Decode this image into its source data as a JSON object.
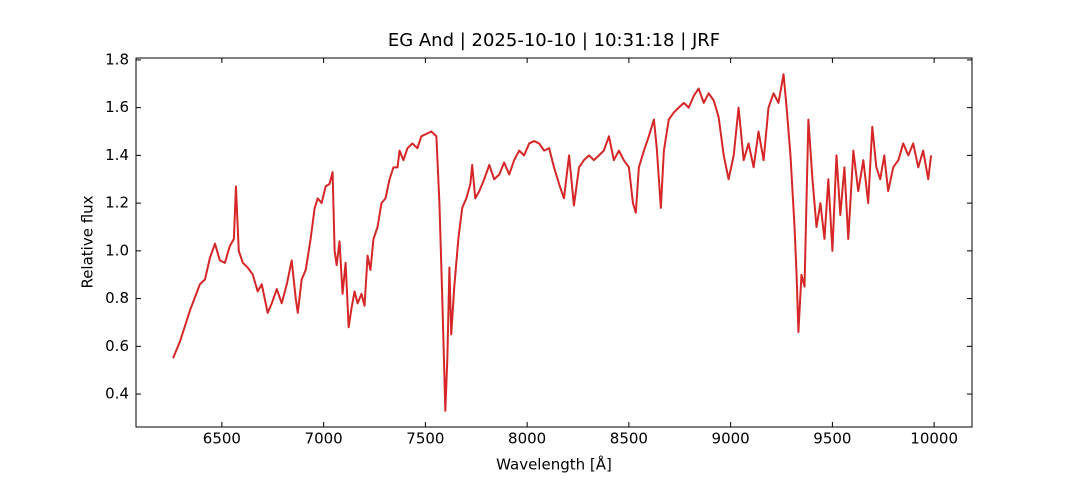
{
  "chart_data": {
    "type": "line",
    "title": "EG And | 2025-10-10 | 10:31:18 | JRF",
    "x_label": "Wavelength [Å]",
    "y_label": "Relative flux",
    "color": "#d62728",
    "x": [
      6260,
      6294,
      6343,
      6392,
      6417,
      6441,
      6466,
      6490,
      6515,
      6539,
      6559,
      6569,
      6583,
      6603,
      6627,
      6652,
      6676,
      6696,
      6725,
      6745,
      6770,
      6794,
      6819,
      6843,
      6863,
      6873,
      6892,
      6912,
      6936,
      6956,
      6971,
      6990,
      7010,
      7029,
      7044,
      7054,
      7064,
      7078,
      7093,
      7108,
      7123,
      7137,
      7152,
      7167,
      7186,
      7201,
      7216,
      7230,
      7245,
      7265,
      7284,
      7304,
      7324,
      7343,
      7363,
      7373,
      7392,
      7412,
      7436,
      7461,
      7480,
      7505,
      7529,
      7554,
      7569,
      7583,
      7598,
      7608,
      7618,
      7627,
      7642,
      7662,
      7681,
      7701,
      7721,
      7730,
      7745,
      7765,
      7789,
      7814,
      7838,
      7863,
      7887,
      7912,
      7936,
      7961,
      7985,
      8010,
      8034,
      8059,
      8083,
      8108,
      8132,
      8157,
      8181,
      8206,
      8230,
      8255,
      8279,
      8304,
      8328,
      8353,
      8377,
      8402,
      8426,
      8451,
      8475,
      8500,
      8520,
      8534,
      8549,
      8574,
      8598,
      8623,
      8637,
      8657,
      8672,
      8696,
      8721,
      8745,
      8770,
      8794,
      8819,
      8843,
      8868,
      8892,
      8917,
      8941,
      8966,
      8990,
      9015,
      9039,
      9064,
      9088,
      9113,
      9137,
      9162,
      9186,
      9211,
      9235,
      9260,
      9275,
      9294,
      9314,
      9324,
      9333,
      9348,
      9363,
      9382,
      9402,
      9422,
      9441,
      9461,
      9480,
      9500,
      9520,
      9539,
      9559,
      9578,
      9603,
      9627,
      9652,
      9676,
      9696,
      9716,
      9735,
      9755,
      9774,
      9799,
      9824,
      9848,
      9873,
      9897,
      9922,
      9946,
      9971,
      9985
    ],
    "values": [
      0.55,
      0.62,
      0.75,
      0.86,
      0.88,
      0.97,
      1.03,
      0.96,
      0.95,
      1.02,
      1.05,
      1.27,
      1.0,
      0.95,
      0.93,
      0.9,
      0.83,
      0.86,
      0.74,
      0.78,
      0.84,
      0.78,
      0.86,
      0.96,
      0.8,
      0.74,
      0.88,
      0.92,
      1.05,
      1.18,
      1.22,
      1.2,
      1.27,
      1.28,
      1.33,
      1.0,
      0.94,
      1.04,
      0.82,
      0.95,
      0.68,
      0.76,
      0.83,
      0.78,
      0.82,
      0.77,
      0.98,
      0.92,
      1.05,
      1.1,
      1.2,
      1.22,
      1.3,
      1.35,
      1.35,
      1.42,
      1.38,
      1.43,
      1.45,
      1.43,
      1.48,
      1.49,
      1.5,
      1.48,
      1.2,
      0.8,
      0.33,
      0.55,
      0.93,
      0.65,
      0.85,
      1.05,
      1.18,
      1.22,
      1.28,
      1.36,
      1.22,
      1.25,
      1.3,
      1.36,
      1.3,
      1.32,
      1.37,
      1.32,
      1.38,
      1.42,
      1.4,
      1.45,
      1.46,
      1.45,
      1.42,
      1.43,
      1.35,
      1.28,
      1.22,
      1.4,
      1.19,
      1.35,
      1.38,
      1.4,
      1.38,
      1.4,
      1.42,
      1.48,
      1.38,
      1.42,
      1.38,
      1.35,
      1.2,
      1.16,
      1.35,
      1.42,
      1.48,
      1.55,
      1.43,
      1.18,
      1.42,
      1.55,
      1.58,
      1.6,
      1.62,
      1.6,
      1.65,
      1.68,
      1.62,
      1.66,
      1.63,
      1.56,
      1.4,
      1.3,
      1.4,
      1.6,
      1.38,
      1.45,
      1.35,
      1.5,
      1.38,
      1.6,
      1.66,
      1.62,
      1.74,
      1.6,
      1.4,
      1.1,
      0.9,
      0.66,
      0.9,
      0.85,
      1.55,
      1.3,
      1.1,
      1.2,
      1.05,
      1.3,
      1.0,
      1.4,
      1.15,
      1.35,
      1.05,
      1.42,
      1.25,
      1.38,
      1.2,
      1.52,
      1.35,
      1.3,
      1.4,
      1.25,
      1.35,
      1.38,
      1.45,
      1.4,
      1.45,
      1.35,
      1.42,
      1.3,
      1.4
    ],
    "xlim": [
      6078,
      10186
    ],
    "ylim": [
      0.262,
      1.808
    ],
    "xticks": [
      6500,
      7000,
      7500,
      8000,
      8500,
      9000,
      9500,
      10000
    ],
    "yticks": [
      0.4,
      0.6,
      0.8,
      {
        "value": 1,
        "label": "1.0"
      },
      1.2,
      1.4,
      1.6,
      1.8
    ]
  }
}
